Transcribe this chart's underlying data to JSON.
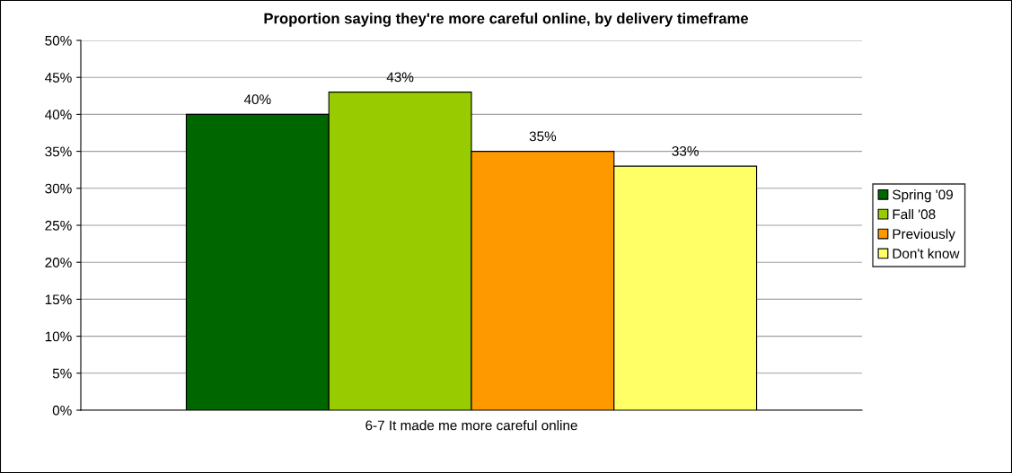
{
  "chart_data": {
    "type": "bar",
    "title": "Proportion saying they're more careful online, by delivery timeframe",
    "categories": [
      "6-7 It made me more careful online"
    ],
    "series": [
      {
        "name": "Spring '09",
        "color": "#006600",
        "values": [
          40
        ],
        "value_labels": [
          "40%"
        ]
      },
      {
        "name": "Fall '08",
        "color": "#99cc00",
        "values": [
          43
        ],
        "value_labels": [
          "43%"
        ]
      },
      {
        "name": "Previously",
        "color": "#ff9900",
        "values": [
          35
        ],
        "value_labels": [
          "35%"
        ]
      },
      {
        "name": "Don't know",
        "color": "#ffff66",
        "values": [
          33
        ],
        "value_labels": [
          "33%"
        ]
      }
    ],
    "ylim": [
      0,
      50
    ],
    "yticks": [
      {
        "value": 0,
        "label": "0%"
      },
      {
        "value": 5,
        "label": "5%"
      },
      {
        "value": 10,
        "label": "10%"
      },
      {
        "value": 15,
        "label": "15%"
      },
      {
        "value": 20,
        "label": "20%"
      },
      {
        "value": 25,
        "label": "25%"
      },
      {
        "value": 30,
        "label": "30%"
      },
      {
        "value": 35,
        "label": "35%"
      },
      {
        "value": 40,
        "label": "40%"
      },
      {
        "value": 45,
        "label": "45%"
      },
      {
        "value": 50,
        "label": "50%"
      }
    ],
    "grid": "y",
    "legend": "right"
  }
}
